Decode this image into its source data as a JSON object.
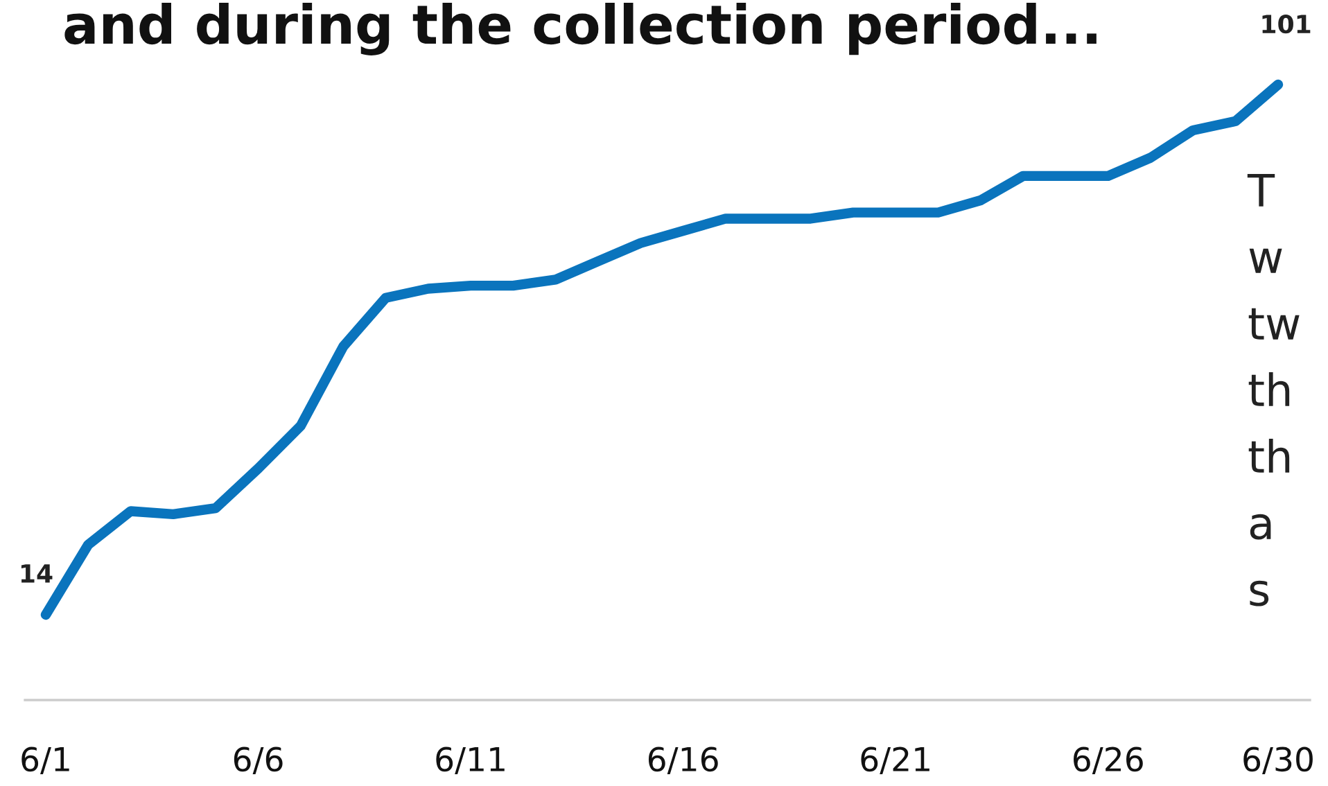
{
  "chart_data": {
    "type": "line",
    "title": "and during the collection period...",
    "categories": [
      "6/1",
      null,
      null,
      null,
      null,
      "6/6",
      null,
      null,
      null,
      null,
      "6/11",
      null,
      null,
      null,
      null,
      "6/16",
      null,
      null,
      null,
      null,
      "6/21",
      null,
      null,
      null,
      null,
      "6/26",
      null,
      null,
      null,
      "6/30"
    ],
    "series": [
      {
        "color": "#0a74bd",
        "values": [
          14,
          25.5,
          31,
          30.5,
          31.5,
          38,
          45,
          58,
          66,
          67.5,
          68,
          68,
          69,
          72,
          75,
          77,
          79,
          79,
          79,
          80,
          80,
          80,
          82,
          86,
          86,
          86,
          89,
          93.5,
          95,
          101
        ],
        "value_labels": [
          "14",
          null,
          null,
          null,
          null,
          null,
          null,
          null,
          null,
          null,
          null,
          null,
          null,
          null,
          null,
          null,
          null,
          null,
          null,
          null,
          null,
          null,
          null,
          null,
          null,
          null,
          null,
          null,
          null,
          "101"
        ]
      }
    ],
    "tick_labels": "x",
    "annotations": [
      "T",
      "w",
      "tw",
      "th",
      "th",
      "a",
      "s"
    ]
  }
}
